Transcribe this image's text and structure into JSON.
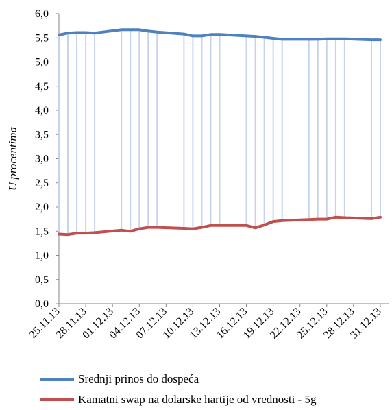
{
  "chart_data": {
    "type": "line",
    "ylabel": "U procentima",
    "xlabel": "",
    "ylim": [
      0,
      6
    ],
    "ytick_labels": [
      "0,0",
      "0,5",
      "1,0",
      "1,5",
      "2,0",
      "2,5",
      "3,0",
      "3,5",
      "4,0",
      "4,5",
      "5,0",
      "5,5",
      "6,0"
    ],
    "xtick_labels": [
      "25.11.13",
      "28.11.13",
      "01.12.13",
      "04.12.13",
      "07.12.13",
      "10.12.13",
      "13.12.13",
      "16.12.13",
      "19.12.13",
      "22.12.13",
      "25.12.13",
      "28.12.13",
      "31.12.13"
    ],
    "x": [
      "25.11.13",
      "26.11.13",
      "27.11.13",
      "28.11.13",
      "29.11.13",
      "02.12.13",
      "03.12.13",
      "04.12.13",
      "05.12.13",
      "06.12.13",
      "09.12.13",
      "10.12.13",
      "11.12.13",
      "12.12.13",
      "13.12.13",
      "16.12.13",
      "17.12.13",
      "18.12.13",
      "19.12.13",
      "20.12.13",
      "23.12.13",
      "24.12.13",
      "25.12.13",
      "26.12.13",
      "27.12.13",
      "30.12.13",
      "31.12.13"
    ],
    "series": [
      {
        "name": "Srednji prinos do dospeća",
        "color": "#4f81bd",
        "values": [
          5.56,
          5.6,
          5.61,
          5.61,
          5.6,
          5.67,
          5.67,
          5.67,
          5.64,
          5.62,
          5.58,
          5.54,
          5.54,
          5.57,
          5.57,
          5.54,
          5.53,
          5.51,
          5.49,
          5.47,
          5.47,
          5.47,
          5.48,
          5.48,
          5.48,
          5.46,
          5.46
        ]
      },
      {
        "name": "Kamatni swap na dolarske hartije od vrednosti - 5g",
        "color": "#c0504d",
        "values": [
          1.44,
          1.43,
          1.46,
          1.46,
          1.47,
          1.52,
          1.5,
          1.55,
          1.58,
          1.58,
          1.56,
          1.55,
          1.58,
          1.62,
          1.62,
          1.62,
          1.57,
          1.63,
          1.7,
          1.72,
          1.74,
          1.75,
          1.75,
          1.79,
          1.78,
          1.76,
          1.79
        ]
      }
    ],
    "drop_lines": true,
    "grid": false,
    "legend_position": "bottom"
  }
}
